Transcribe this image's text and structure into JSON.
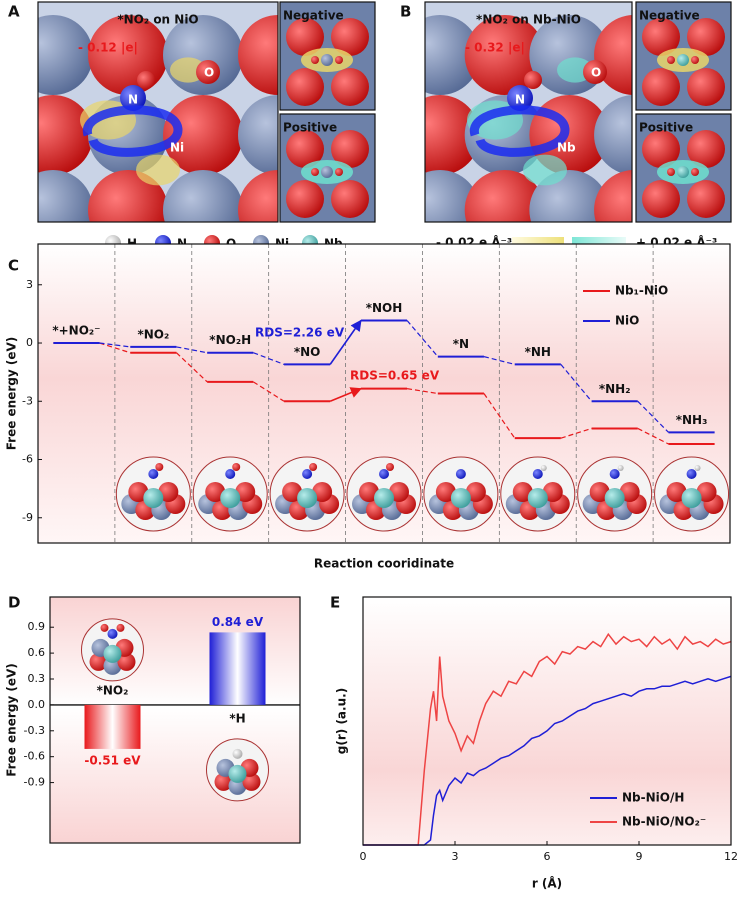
{
  "panels": {
    "A": {
      "letter": "A",
      "title": "*NO₂ on NiO",
      "charge": "- 0.12 |e|",
      "negative": "Negative",
      "positive": "Positive",
      "atoms": [
        "N",
        "O",
        "Ni"
      ]
    },
    "B": {
      "letter": "B",
      "title": "*NO₂ on Nb-NiO",
      "charge": "- 0.32 |e|",
      "negative": "Negative",
      "positive": "Positive",
      "atoms": [
        "N",
        "O",
        "Nb"
      ]
    },
    "atom_legend": [
      "H",
      "N",
      "O",
      "Ni",
      "Nb"
    ],
    "color_scale": [
      "- 0.02 e Å⁻³",
      "+ 0.02 e Å⁻³"
    ]
  },
  "chart_data": [
    {
      "type": "energy-diagram",
      "panel": "C",
      "ylabel": "Free energy (eV)",
      "xlabel": "Reaction cooridinate",
      "categories": [
        "*+NO₂⁻",
        "*NO₂",
        "*NO₂H",
        "*NO",
        "*NOH",
        "*N",
        "*NH",
        "*NH₂",
        "*NH₃"
      ],
      "series": [
        {
          "name": "Nb₁-NiO",
          "color": "#e8191c",
          "values": [
            0,
            -0.5,
            -2.0,
            -3.0,
            -2.35,
            -2.6,
            -4.9,
            -4.4,
            -5.2
          ]
        },
        {
          "name": "NiO",
          "color": "#1f1fd6",
          "values": [
            0,
            -0.2,
            -0.5,
            -1.1,
            1.16,
            -0.7,
            -1.1,
            -3.0,
            -4.6
          ]
        }
      ],
      "ylim": [
        -10.3,
        5.1
      ],
      "yticks": [
        3,
        0,
        -3,
        -6,
        -9
      ],
      "annotations": [
        {
          "text": "RDS=2.26 eV",
          "color": "#1f1fd6"
        },
        {
          "text": "RDS=0.65 eV",
          "color": "#e8191c"
        }
      ],
      "legend": "upper right"
    },
    {
      "type": "bar",
      "panel": "D",
      "ylabel": "Free energy (eV)",
      "categories": [
        "*NO₂",
        "*H"
      ],
      "values": [
        -0.51,
        0.84
      ],
      "value_labels": [
        "-0.51 eV",
        "0.84 eV"
      ],
      "colors": [
        "#e8191c",
        "#1f1fd6"
      ],
      "ylim": [
        -1.6,
        1.25
      ],
      "yticks": [
        0.9,
        0.6,
        0.3,
        {
          "value": 0,
          "label": "0.0"
        },
        -0.3,
        -0.6,
        -0.9
      ]
    },
    {
      "type": "line",
      "panel": "E",
      "xlabel": "r (Å)",
      "ylabel": "g(r) (a.u.)",
      "x": [
        0,
        0.5,
        1,
        1.5,
        1.8,
        2.0,
        2.2,
        2.3,
        2.4,
        2.5,
        2.6,
        2.8,
        3.0,
        3.2,
        3.4,
        3.6,
        3.8,
        4.0,
        4.25,
        4.5,
        4.75,
        5.0,
        5.25,
        5.5,
        5.75,
        6.0,
        6.25,
        6.5,
        6.75,
        7.0,
        7.25,
        7.5,
        7.75,
        8.0,
        8.25,
        8.5,
        8.75,
        9.0,
        9.25,
        9.5,
        9.75,
        10.0,
        10.25,
        10.5,
        10.75,
        11.0,
        11.25,
        11.5,
        11.75,
        12.0
      ],
      "series": [
        {
          "name": "Nb-NiO/H",
          "color": "#1f1fd6",
          "values": [
            0,
            0,
            0,
            0,
            0,
            0,
            0.02,
            0.12,
            0.2,
            0.22,
            0.18,
            0.24,
            0.27,
            0.25,
            0.29,
            0.28,
            0.3,
            0.31,
            0.33,
            0.35,
            0.36,
            0.38,
            0.4,
            0.43,
            0.44,
            0.46,
            0.49,
            0.5,
            0.52,
            0.54,
            0.55,
            0.57,
            0.58,
            0.59,
            0.6,
            0.61,
            0.6,
            0.62,
            0.63,
            0.63,
            0.64,
            0.64,
            0.65,
            0.66,
            0.65,
            0.66,
            0.67,
            0.66,
            0.67,
            0.68
          ]
        },
        {
          "name": "Nb-NiO/NO₂⁻",
          "color": "#ee4444",
          "values": [
            0,
            0,
            0,
            0,
            0,
            0.3,
            0.55,
            0.62,
            0.5,
            0.76,
            0.6,
            0.5,
            0.45,
            0.38,
            0.44,
            0.41,
            0.5,
            0.57,
            0.62,
            0.6,
            0.66,
            0.65,
            0.7,
            0.68,
            0.74,
            0.76,
            0.73,
            0.78,
            0.77,
            0.8,
            0.79,
            0.82,
            0.8,
            0.85,
            0.81,
            0.84,
            0.82,
            0.83,
            0.8,
            0.84,
            0.81,
            0.83,
            0.79,
            0.84,
            0.81,
            0.82,
            0.8,
            0.83,
            0.81,
            0.82
          ]
        }
      ],
      "xlim": [
        0,
        12
      ],
      "ylim": [
        0,
        1
      ],
      "xticks": [
        0,
        3,
        6,
        9,
        12
      ],
      "legend": "lower right"
    }
  ]
}
